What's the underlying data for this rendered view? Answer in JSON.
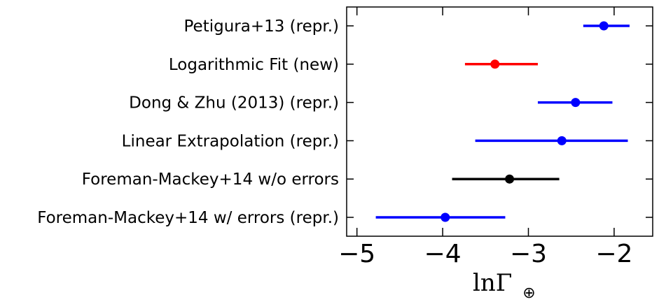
{
  "chart_data": {
    "type": "errorbar",
    "xlabel": "lnΓ",
    "xlabel_subscript": "⊕",
    "xlim": [
      -5.12,
      -1.55
    ],
    "xticks": [
      -5,
      -4,
      -3,
      -2
    ],
    "xtick_labels": [
      "−5",
      "−4",
      "−3",
      "−2"
    ],
    "grid": false,
    "categories": [
      "Petigura+13 (repr.)",
      "Logarithmic Fit (new)",
      "Dong & Zhu (2013) (repr.)",
      "Linear Extrapolation (repr.)",
      "Foreman-Mackey+14 w/o errors",
      "Foreman-Mackey+14 w/ errors (repr.)"
    ],
    "points": [
      {
        "value": -2.12,
        "low": -2.36,
        "high": -1.82,
        "color": "#0000ff"
      },
      {
        "value": -3.39,
        "low": -3.74,
        "high": -2.89,
        "color": "#ff0000"
      },
      {
        "value": -2.45,
        "low": -2.89,
        "high": -2.02,
        "color": "#0000ff"
      },
      {
        "value": -2.61,
        "low": -3.62,
        "high": -1.84,
        "color": "#0000ff"
      },
      {
        "value": -3.22,
        "low": -3.89,
        "high": -2.64,
        "color": "#000000"
      },
      {
        "value": -3.97,
        "low": -4.78,
        "high": -3.27,
        "color": "#0000ff"
      }
    ]
  }
}
